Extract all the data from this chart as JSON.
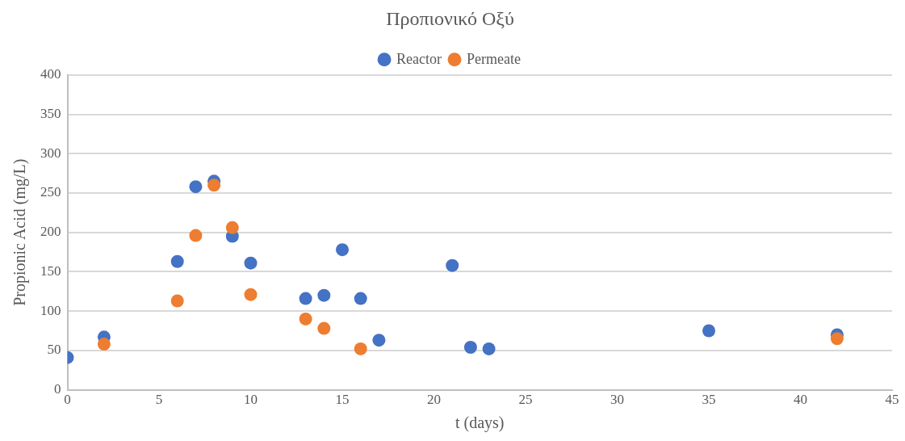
{
  "chart_data": {
    "type": "scatter",
    "title": "Προπιονικό Οξύ",
    "xlabel": "t (days)",
    "ylabel": "Propionic Acid (mg/L)",
    "xlim": [
      0,
      45
    ],
    "xticks": [
      0,
      5,
      10,
      15,
      20,
      25,
      30,
      35,
      40,
      45
    ],
    "ylim": [
      0,
      400
    ],
    "yticks": [
      0,
      50,
      100,
      150,
      200,
      250,
      300,
      350,
      400
    ],
    "grid": "y",
    "legend": "top",
    "marker": "circle",
    "series": [
      {
        "name": "Reactor",
        "color": "#4472c4",
        "x": [
          0,
          2,
          6,
          7,
          8,
          9,
          10,
          13,
          14,
          15,
          16,
          17,
          21,
          22,
          23,
          35,
          42
        ],
        "values": [
          41,
          67,
          163,
          258,
          265,
          195,
          161,
          116,
          120,
          178,
          116,
          63,
          158,
          54,
          52,
          75,
          70
        ]
      },
      {
        "name": "Permeate",
        "color": "#ed7d31",
        "x": [
          2,
          6,
          7,
          8,
          9,
          10,
          13,
          14,
          16,
          42
        ],
        "values": [
          58,
          113,
          196,
          260,
          206,
          121,
          90,
          78,
          52,
          65
        ]
      }
    ]
  }
}
